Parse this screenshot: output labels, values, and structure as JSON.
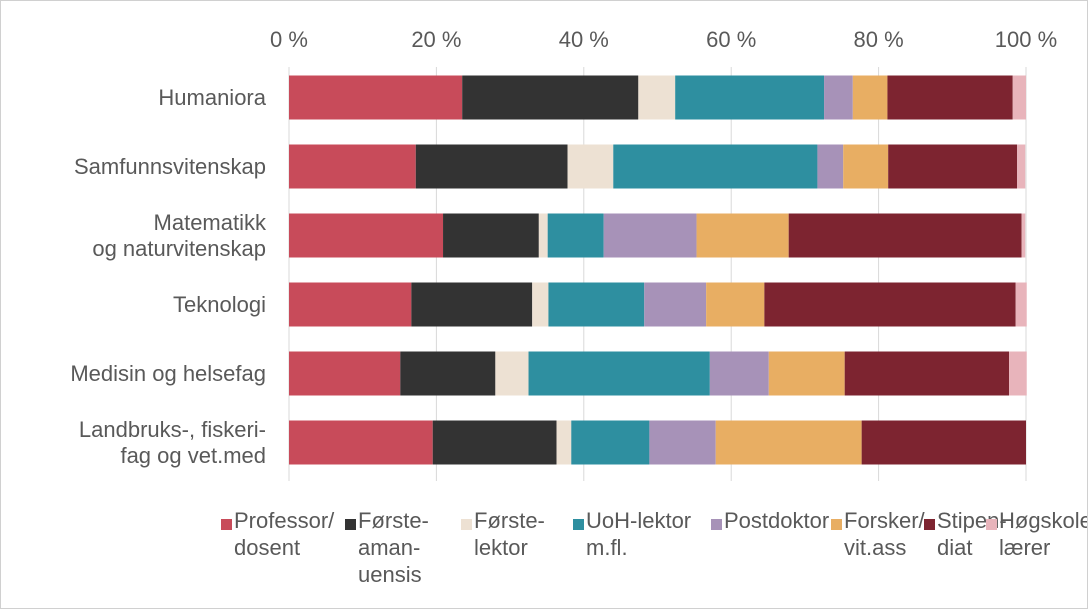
{
  "chart_data": {
    "type": "bar",
    "orientation": "horizontal",
    "stacked": true,
    "categories": [
      "Humaniora",
      "Samfunnsvitenskap",
      "Matematikk\nog naturvitenskap",
      "Teknologi",
      "Medisin og helsefag",
      "Landbruks-, fiskeri-\nfag og vet.med"
    ],
    "xlim": [
      0,
      100
    ],
    "xticks": [
      {
        "value": 0,
        "label": "0 %"
      },
      {
        "value": 20,
        "label": "20 %"
      },
      {
        "value": 40,
        "label": "40 %"
      },
      {
        "value": 60,
        "label": "60 %"
      },
      {
        "value": 80,
        "label": "80 %"
      },
      {
        "value": 100,
        "label": "100 %"
      }
    ],
    "grid": true,
    "legend": "bottom",
    "series": [
      {
        "name": "Professor/\ndosent",
        "color": "#c84b5a",
        "values": [
          23.5,
          17.2,
          20.9,
          16.6,
          15.1,
          19.5
        ]
      },
      {
        "name": "Første-\naman-\nuensis",
        "color": "#333333",
        "values": [
          23.9,
          20.6,
          13.0,
          16.4,
          12.9,
          16.8
        ]
      },
      {
        "name": "Første-\nlektor",
        "color": "#ede1d3",
        "values": [
          5.0,
          6.2,
          1.2,
          2.2,
          4.5,
          2.0
        ]
      },
      {
        "name": "UoH-lektor\nm.fl.",
        "color": "#2e8fa0",
        "values": [
          20.2,
          27.7,
          7.6,
          13.0,
          24.6,
          10.6
        ]
      },
      {
        "name": "Postdoktor",
        "color": "#a792b8",
        "values": [
          3.9,
          3.5,
          12.6,
          8.4,
          8.0,
          9.0
        ]
      },
      {
        "name": "Forsker/\nvit.ass",
        "color": "#e8ae63",
        "values": [
          4.7,
          6.1,
          12.5,
          7.9,
          10.3,
          19.8
        ]
      },
      {
        "name": "Stipen-\ndiat",
        "color": "#7d2430",
        "values": [
          17.0,
          17.5,
          31.6,
          34.1,
          22.3,
          22.3
        ]
      },
      {
        "name": "Høgskole-\nlærer",
        "color": "#e8b4bb",
        "values": [
          1.8,
          1.1,
          0.5,
          1.5,
          2.4,
          0
        ]
      }
    ]
  }
}
